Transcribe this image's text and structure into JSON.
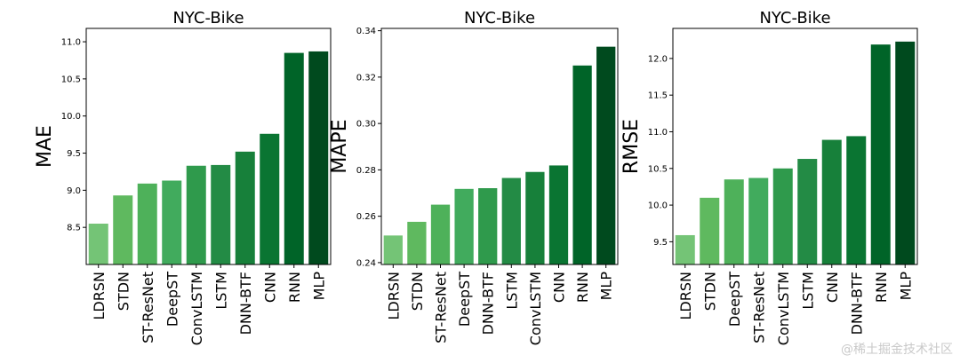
{
  "chart_data": [
    {
      "type": "bar",
      "title": "NYC-Bike",
      "ylabel": "MAE",
      "xlabel": "",
      "categories": [
        "LDRSN",
        "STDN",
        "ST-ResNet",
        "DeepST",
        "ConvLSTM",
        "LSTM",
        "DNN-BTF",
        "CNN",
        "RNN",
        "MLP"
      ],
      "values": [
        8.55,
        8.93,
        9.09,
        9.13,
        9.33,
        9.34,
        9.52,
        9.76,
        10.85,
        10.87
      ],
      "ylim": [
        8.0,
        11.18
      ],
      "yticks": [
        "8.5",
        "9.0",
        "9.5",
        "10.0",
        "10.5",
        "11.0"
      ],
      "grid": false,
      "colors": [
        "#74c476",
        "#5fb95f",
        "#4eb15a",
        "#41ab5d",
        "#2f9a4c",
        "#238b45",
        "#17803a",
        "#0a7532",
        "#006428",
        "#004a1e"
      ]
    },
    {
      "type": "bar",
      "title": "NYC-Bike",
      "ylabel": "MAPE",
      "xlabel": "",
      "categories": [
        "LDRSN",
        "STDN",
        "ST-ResNet",
        "DeepST",
        "DNN-BTF",
        "LSTM",
        "ConvLSTM",
        "CNN",
        "RNN",
        "MLP"
      ],
      "values": [
        0.2517,
        0.2576,
        0.265,
        0.2718,
        0.2721,
        0.2765,
        0.2791,
        0.2819,
        0.325,
        0.3331
      ],
      "ylim": [
        0.2392,
        0.341
      ],
      "yticks": [
        "0.24",
        "0.26",
        "0.28",
        "0.30",
        "0.32",
        "0.34"
      ],
      "grid": false,
      "colors": [
        "#74c476",
        "#5fb95f",
        "#4eb15a",
        "#41ab5d",
        "#2f9a4c",
        "#238b45",
        "#17803a",
        "#0a7532",
        "#006428",
        "#004a1e"
      ]
    },
    {
      "type": "bar",
      "title": "NYC-Bike",
      "ylabel": "RMSE",
      "xlabel": "",
      "categories": [
        "LDRSN",
        "STDN",
        "DeepST",
        "ST-ResNet",
        "ConvLSTM",
        "LSTM",
        "CNN",
        "DNN-BTF",
        "RNN",
        "MLP"
      ],
      "values": [
        9.59,
        10.1,
        10.35,
        10.37,
        10.5,
        10.63,
        10.89,
        10.94,
        12.19,
        12.23
      ],
      "ylim": [
        9.19,
        12.41
      ],
      "yticks": [
        "9.5",
        "10.0",
        "10.5",
        "11.0",
        "11.5",
        "12.0"
      ],
      "grid": false,
      "colors": [
        "#74c476",
        "#5fb95f",
        "#4eb15a",
        "#41ab5d",
        "#2f9a4c",
        "#238b45",
        "#17803a",
        "#0a7532",
        "#006428",
        "#004a1e"
      ]
    }
  ],
  "watermark": "@稀土掘金技术社区"
}
